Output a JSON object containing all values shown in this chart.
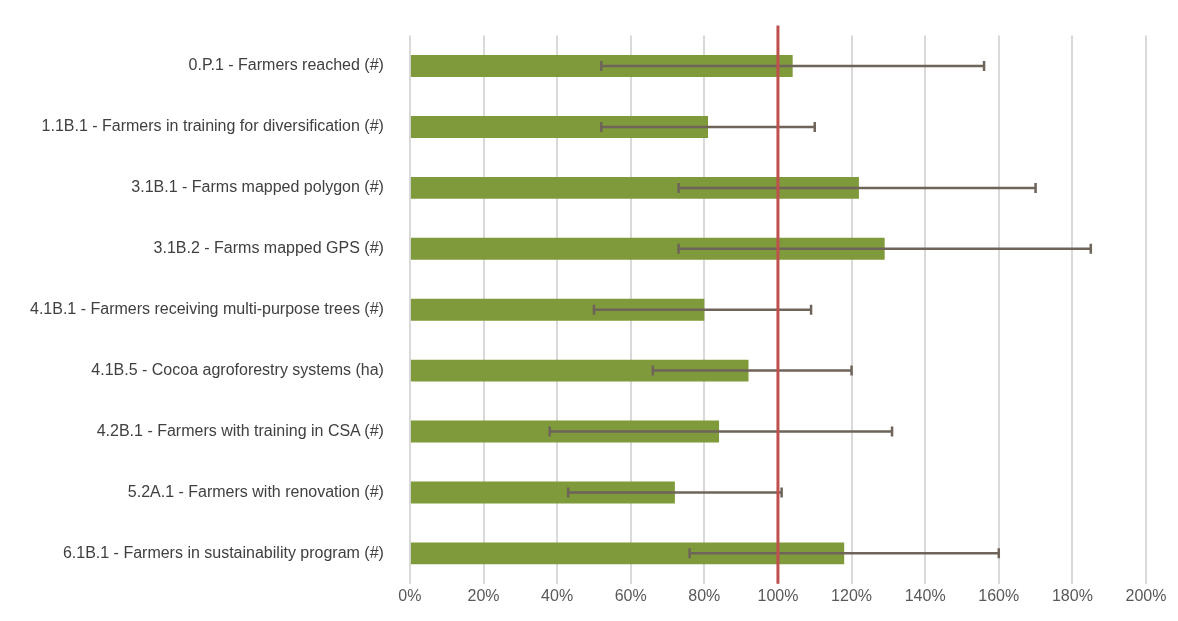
{
  "chart_data": {
    "type": "bar",
    "orientation": "horizontal",
    "categories": [
      "0.P.1 - Farmers reached (#)",
      "1.1B.1 - Farmers in training for diversification (#)",
      "3.1B.1 - Farms mapped polygon (#)",
      "3.1B.2 - Farms mapped GPS (#)",
      "4.1B.1 - Farmers receiving multi-purpose trees (#)",
      "4.1B.5 - Cocoa agroforestry systems (ha)",
      "4.2B.1 - Farmers with training in CSA (#)",
      "5.2A.1 - Farmers with renovation (#)",
      "6.1B.1 - Farmers in sustainability program (#)"
    ],
    "values": [
      104,
      81,
      122,
      129,
      80,
      92,
      84,
      72,
      118
    ],
    "errors": [
      [
        52,
        156
      ],
      [
        52,
        110
      ],
      [
        73,
        170
      ],
      [
        73,
        185
      ],
      [
        50,
        109
      ],
      [
        66,
        120
      ],
      [
        38,
        131
      ],
      [
        43,
        101
      ],
      [
        76,
        160
      ]
    ],
    "color": "#7f9a3a",
    "xlim": [
      0,
      200
    ],
    "xticks": [
      {
        "value": 0,
        "label": "0%"
      },
      {
        "value": 20,
        "label": "20%"
      },
      {
        "value": 40,
        "label": "40%"
      },
      {
        "value": 60,
        "label": "60%"
      },
      {
        "value": 80,
        "label": "80%"
      },
      {
        "value": 100,
        "label": "100%"
      },
      {
        "value": 120,
        "label": "120%"
      },
      {
        "value": 140,
        "label": "140%"
      },
      {
        "value": 160,
        "label": "160%"
      },
      {
        "value": 180,
        "label": "180%"
      },
      {
        "value": 200,
        "label": "200%"
      }
    ],
    "ref_lines": [
      {
        "axis": "x",
        "value": 100,
        "color": "#c0504d"
      }
    ],
    "grid": "x",
    "legend": false
  }
}
